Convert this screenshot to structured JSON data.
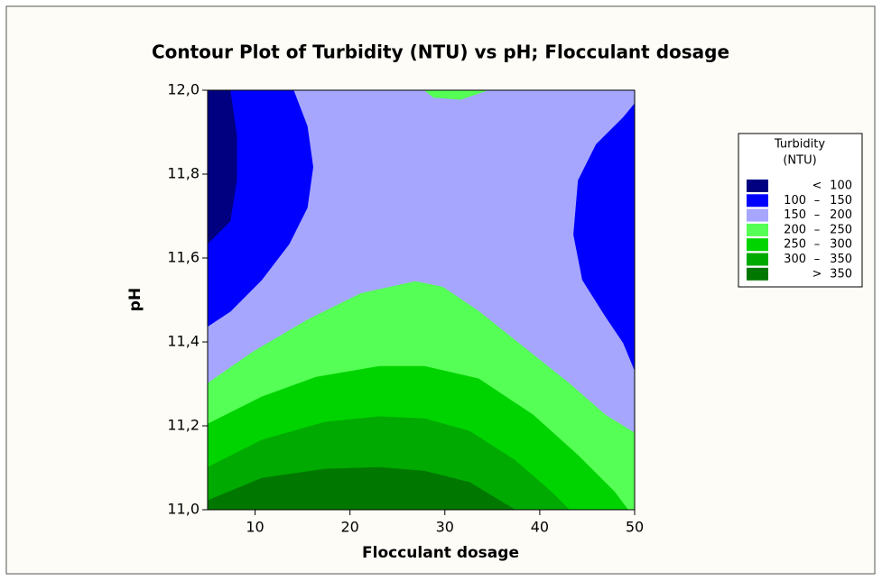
{
  "chart_data": {
    "type": "contour",
    "title": "Contour Plot of Turbidity (NTU) vs pH; Flocculant dosage",
    "x_label": "Flocculant dosage",
    "y_label": "pH",
    "xlim": [
      5,
      50
    ],
    "ylim": [
      11,
      12
    ],
    "xticks": [
      10,
      20,
      30,
      40,
      50
    ],
    "yticks": [
      {
        "value": 11,
        "label": "11,0"
      },
      {
        "value": 11.2,
        "label": "11,2"
      },
      {
        "value": 11.4,
        "label": "11,4"
      },
      {
        "value": 11.6,
        "label": "11,6"
      },
      {
        "value": 11.8,
        "label": "11,8"
      },
      {
        "value": 12,
        "label": "12,0"
      }
    ],
    "legend_title": [
      "Turbidity",
      "(NTU)"
    ],
    "legend": "right",
    "bands": [
      {
        "sign": "<",
        "max": 100,
        "color": "#000080",
        "regions": [
          [
            [
              5,
              12
            ],
            [
              7.38,
              12
            ],
            [
              8.05,
              11.892
            ],
            [
              8.05,
              11.785
            ],
            [
              7.38,
              11.688
            ],
            [
              5,
              11.634
            ]
          ]
        ]
      },
      {
        "min": 100,
        "sign": "–",
        "max": 150,
        "color": "#0000ff",
        "regions": [
          [
            [
              5,
              12
            ],
            [
              14.05,
              12
            ],
            [
              15.5,
              11.914
            ],
            [
              16.1,
              11.817
            ],
            [
              15.5,
              11.72
            ],
            [
              13.6,
              11.634
            ],
            [
              10.7,
              11.548
            ],
            [
              7.4,
              11.473
            ],
            [
              5,
              11.437
            ]
          ],
          [
            [
              50,
              11.968
            ],
            [
              48.8,
              11.935
            ],
            [
              45.95,
              11.871
            ],
            [
              44.05,
              11.785
            ],
            [
              43.57,
              11.656
            ],
            [
              44.5,
              11.548
            ],
            [
              46.9,
              11.462
            ],
            [
              48.8,
              11.398
            ],
            [
              50,
              11.333
            ]
          ]
        ]
      },
      {
        "min": 150,
        "sign": "–",
        "max": 200,
        "color": "#a6a6ff",
        "regions": [
          [
            [
              5,
              11
            ],
            [
              50,
              11
            ],
            [
              50,
              12
            ],
            [
              5,
              12
            ]
          ]
        ]
      },
      {
        "min": 200,
        "sign": "–",
        "max": 250,
        "color": "#55ff55",
        "regions": [
          [
            [
              27.86,
              12
            ],
            [
              28.8,
              11.983
            ],
            [
              31.67,
              11.978
            ],
            [
              34.52,
              12
            ]
          ],
          [
            [
              5,
              11.301
            ],
            [
              9.76,
              11.376
            ],
            [
              15.48,
              11.452
            ],
            [
              21.19,
              11.516
            ],
            [
              26.9,
              11.544
            ],
            [
              29.76,
              11.531
            ],
            [
              33.57,
              11.473
            ],
            [
              38.33,
              11.387
            ],
            [
              43.1,
              11.301
            ],
            [
              46.9,
              11.226
            ],
            [
              50,
              11.183
            ],
            [
              50,
              11
            ],
            [
              5,
              11
            ]
          ]
        ]
      },
      {
        "min": 250,
        "sign": "–",
        "max": 300,
        "color": "#00d400",
        "regions": [
          [
            [
              5,
              11.204
            ],
            [
              10.71,
              11.269
            ],
            [
              16.43,
              11.316
            ],
            [
              23.1,
              11.342
            ],
            [
              27.86,
              11.342
            ],
            [
              33.57,
              11.312
            ],
            [
              39.29,
              11.226
            ],
            [
              44.05,
              11.129
            ],
            [
              47.86,
              11.043
            ],
            [
              49.29,
              11
            ],
            [
              5,
              11
            ]
          ]
        ]
      },
      {
        "min": 300,
        "sign": "–",
        "max": 350,
        "color": "#00aa00",
        "regions": [
          [
            [
              5,
              11.101
            ],
            [
              10.71,
              11.166
            ],
            [
              17.38,
              11.209
            ],
            [
              23.1,
              11.222
            ],
            [
              27.86,
              11.217
            ],
            [
              32.62,
              11.187
            ],
            [
              37.38,
              11.118
            ],
            [
              41.19,
              11.043
            ],
            [
              43.1,
              11
            ],
            [
              5,
              11
            ]
          ]
        ]
      },
      {
        "sign": ">",
        "min": 350,
        "color": "#007800",
        "regions": [
          [
            [
              5,
              11.022
            ],
            [
              10.71,
              11.075
            ],
            [
              17.38,
              11.097
            ],
            [
              23.1,
              11.101
            ],
            [
              27.86,
              11.092
            ],
            [
              32.62,
              11.065
            ],
            [
              37.38,
              11
            ],
            [
              5,
              11
            ]
          ]
        ]
      }
    ]
  }
}
